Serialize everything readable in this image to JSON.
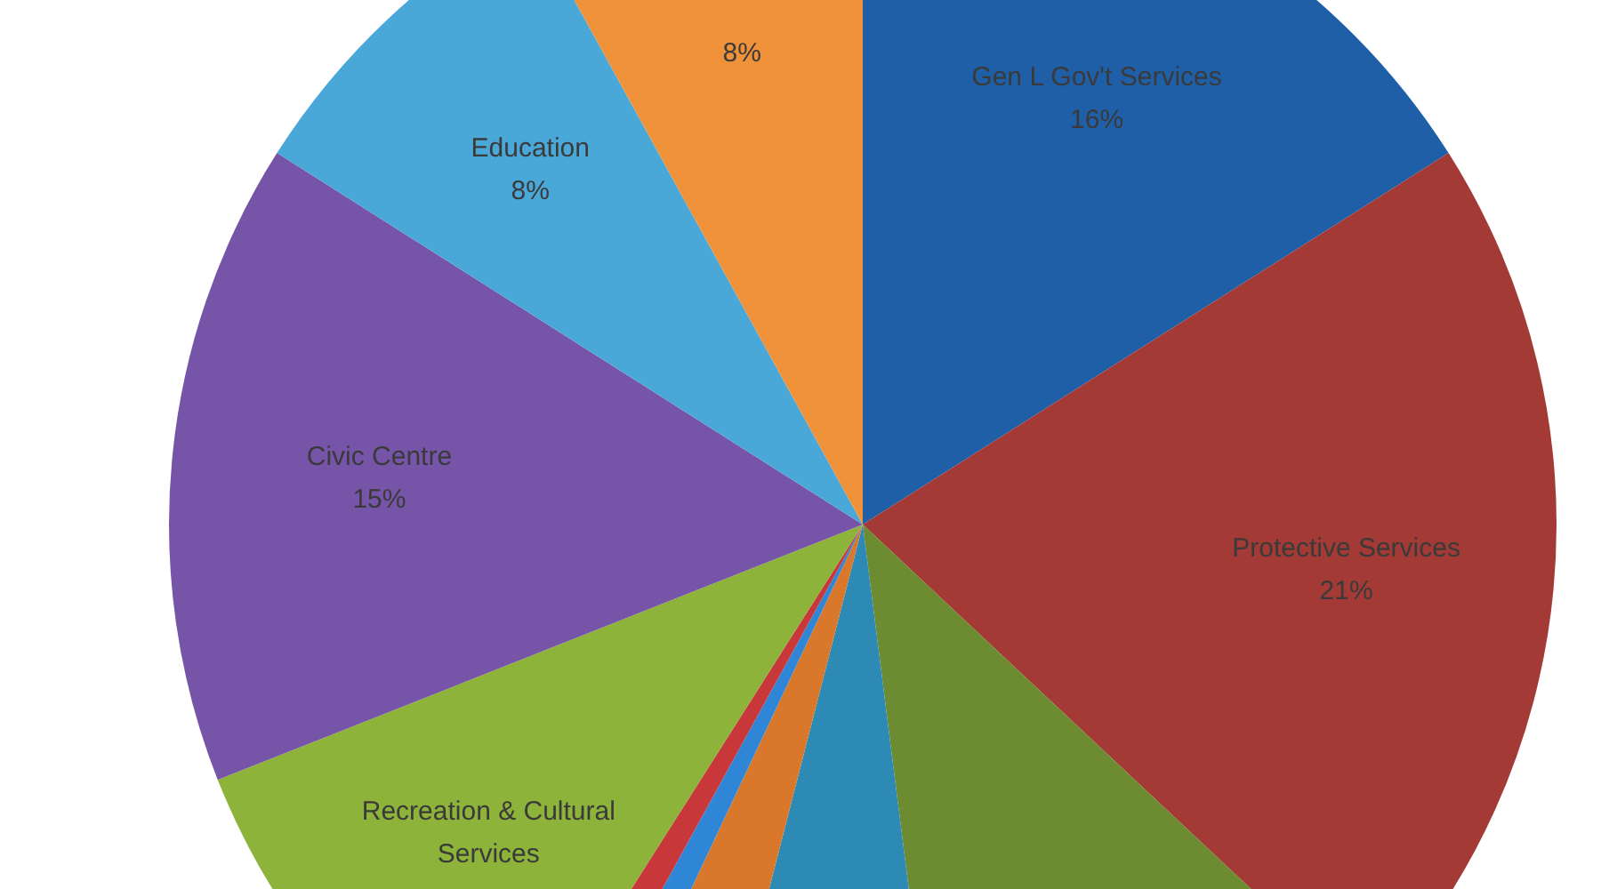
{
  "chart_data": {
    "type": "pie",
    "categories": [
      "Gen L Gov't Services",
      "Protective Services",
      null,
      null,
      null,
      null,
      null,
      "Recreation & Cultural Services",
      "Civic Centre",
      "Education",
      null
    ],
    "values": [
      16,
      21,
      11,
      6,
      3,
      1,
      1,
      10,
      15,
      8,
      8
    ],
    "colors": [
      "#1f5fa8",
      "#a33a35",
      "#6d8b30",
      "#2d8ab5",
      "#d9772a",
      "#2f86d6",
      "#c8383a",
      "#8db33a",
      "#7654a8",
      "#4aa8d8",
      "#f0923a"
    ],
    "value_labels": [
      "16%",
      "21%",
      null,
      null,
      null,
      null,
      null,
      null,
      "15%",
      "8%",
      "8%"
    ],
    "legend": false
  }
}
